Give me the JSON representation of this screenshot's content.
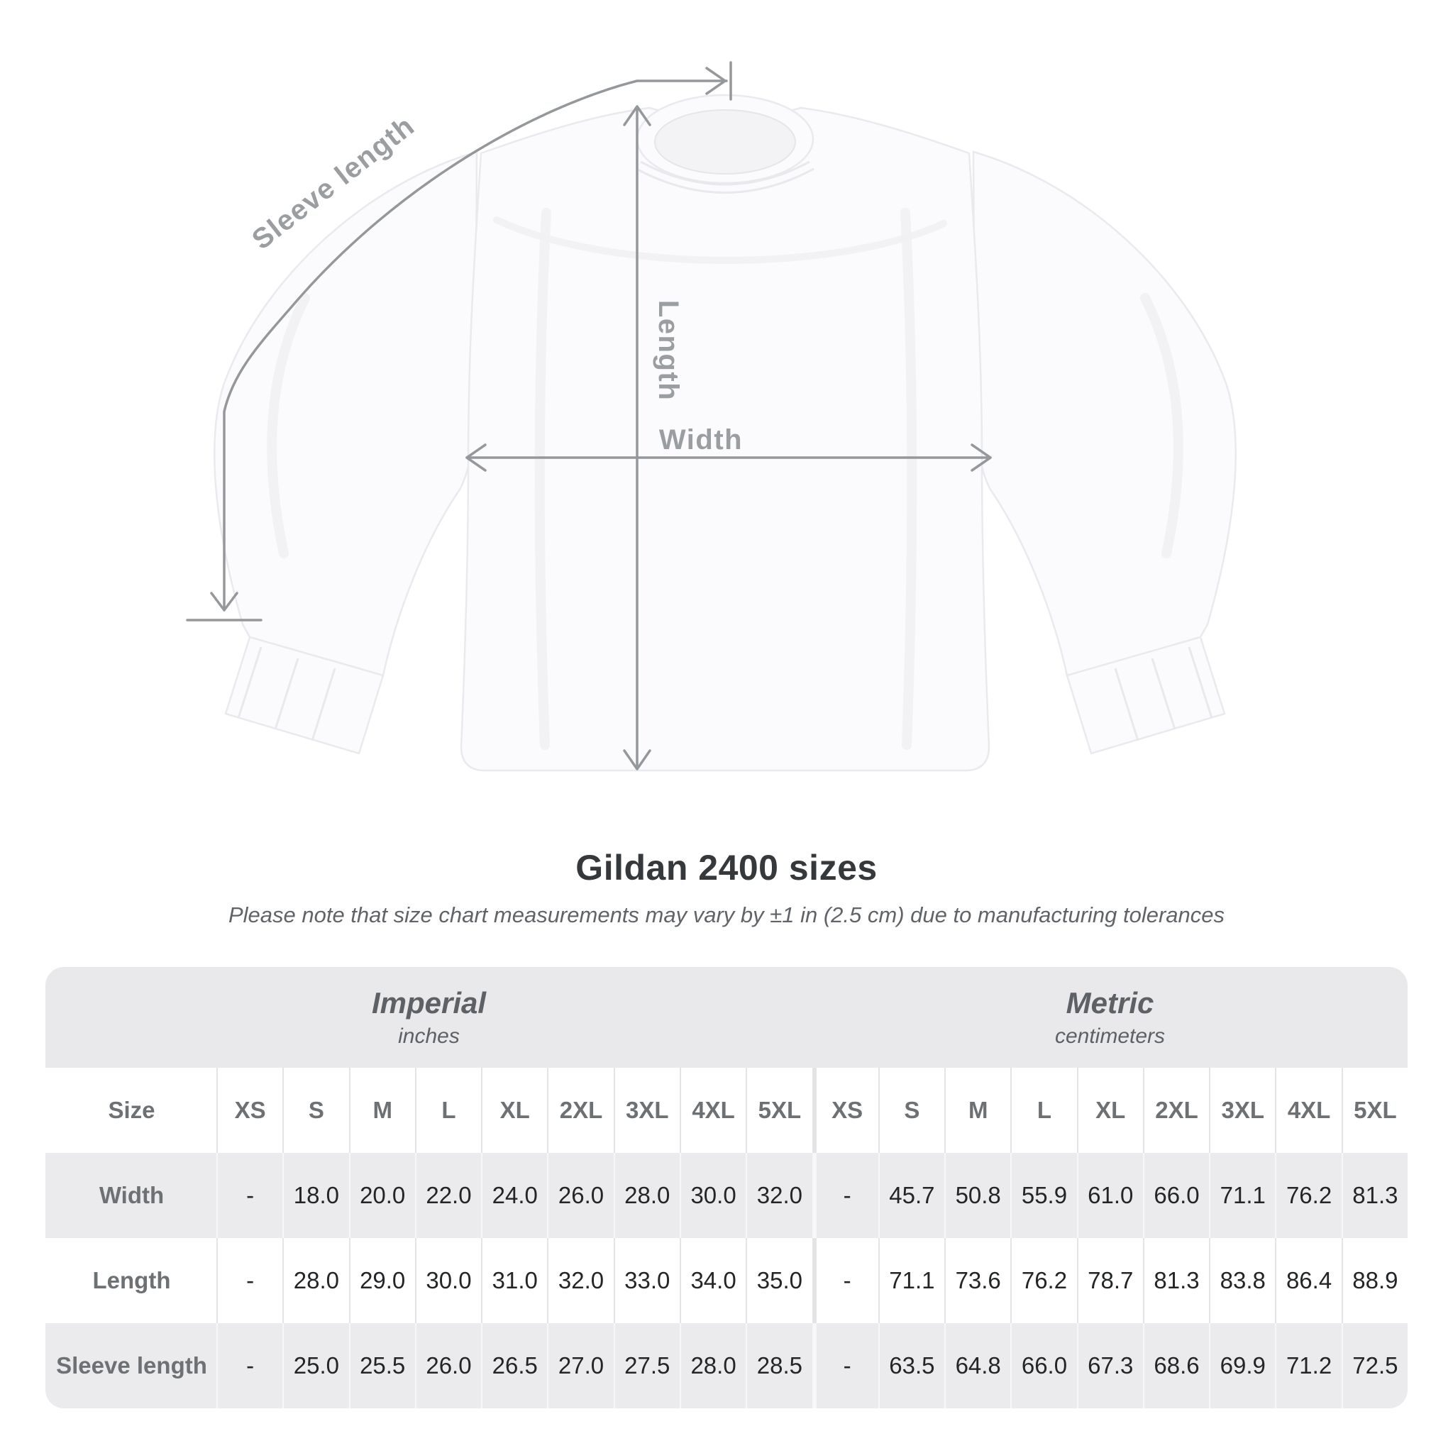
{
  "figure": {
    "labels": {
      "sleeve_length": "Sleeve length",
      "length": "Length",
      "width": "Width"
    }
  },
  "title": "Gildan 2400 sizes",
  "subtitle": "Please note that size chart measurements may vary by ±1 in (2.5 cm) due to manufacturing tolerances",
  "table": {
    "unit_groups": [
      {
        "name": "Imperial",
        "unit": "inches"
      },
      {
        "name": "Metric",
        "unit": "centimeters"
      }
    ],
    "size_header": "Size",
    "sizes": [
      "XS",
      "S",
      "M",
      "L",
      "XL",
      "2XL",
      "3XL",
      "4XL",
      "5XL"
    ],
    "rows": [
      {
        "label": "Width",
        "imperial": [
          "-",
          "18.0",
          "20.0",
          "22.0",
          "24.0",
          "26.0",
          "28.0",
          "30.0",
          "32.0"
        ],
        "metric": [
          "-",
          "45.7",
          "50.8",
          "55.9",
          "61.0",
          "66.0",
          "71.1",
          "76.2",
          "81.3"
        ]
      },
      {
        "label": "Length",
        "imperial": [
          "-",
          "28.0",
          "29.0",
          "30.0",
          "31.0",
          "32.0",
          "33.0",
          "34.0",
          "35.0"
        ],
        "metric": [
          "-",
          "71.1",
          "73.6",
          "76.2",
          "78.7",
          "81.3",
          "83.8",
          "86.4",
          "88.9"
        ]
      },
      {
        "label": "Sleeve length",
        "imperial": [
          "-",
          "25.0",
          "25.5",
          "26.0",
          "26.5",
          "27.0",
          "27.5",
          "28.0",
          "28.5"
        ],
        "metric": [
          "-",
          "63.5",
          "64.8",
          "66.0",
          "67.3",
          "68.6",
          "69.9",
          "71.2",
          "72.5"
        ]
      }
    ]
  },
  "colors": {
    "dimension_gray": "#95989b",
    "dimension_label_gray": "#9b9ea1",
    "table_band": "#e9e9eb",
    "row_stripe": "#ebebed",
    "value_text": "#232527",
    "label_text": "#6d7174",
    "title_text": "#36393c"
  }
}
